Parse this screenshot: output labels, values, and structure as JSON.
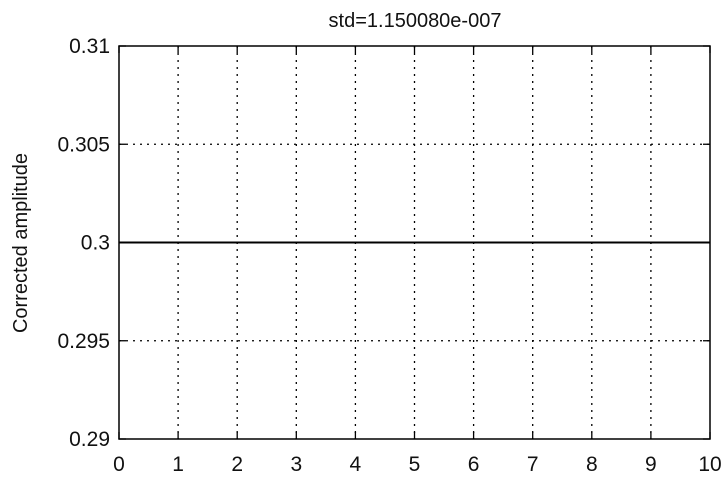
{
  "chart_data": {
    "type": "line",
    "title": "std=1.150080e-007",
    "xlabel": "",
    "ylabel": "Corrected amplitude",
    "xlim": [
      0,
      10
    ],
    "ylim": [
      0.29,
      0.31
    ],
    "x_ticks": [
      0,
      1,
      2,
      3,
      4,
      5,
      6,
      7,
      8,
      9,
      10
    ],
    "x_tick_labels": [
      "0",
      "1",
      "2",
      "3",
      "4",
      "5",
      "6",
      "7",
      "8",
      "9",
      "10"
    ],
    "y_ticks": [
      0.29,
      0.295,
      0.3,
      0.305,
      0.31
    ],
    "y_tick_labels": [
      "0.29",
      "0.295",
      "0.3",
      "0.305",
      "0.31"
    ],
    "grid": true,
    "series": [
      {
        "x": [
          0,
          1,
          2,
          3,
          4,
          5,
          6,
          7,
          8,
          9,
          10
        ],
        "y": [
          0.3,
          0.3,
          0.3,
          0.3,
          0.3,
          0.3,
          0.3,
          0.3,
          0.3,
          0.3,
          0.3
        ]
      }
    ],
    "colors": {
      "line": "#000000",
      "grid": "#000000",
      "axes": "#000000"
    }
  }
}
